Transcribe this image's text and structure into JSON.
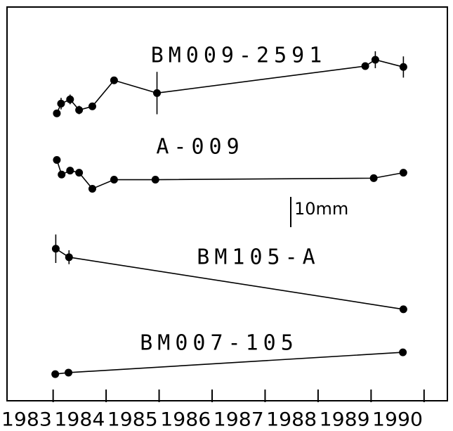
{
  "chart_data": {
    "type": "line",
    "xlim": [
      1983.13,
      1991.44
    ],
    "ylim": [
      0,
      130
    ],
    "xticks": [
      {
        "value": 1983.5,
        "label": "1983"
      },
      {
        "value": 1984.5,
        "label": "1984"
      },
      {
        "value": 1985.5,
        "label": "1985"
      },
      {
        "value": 1986.5,
        "label": "1986"
      },
      {
        "value": 1987.5,
        "label": "1987"
      },
      {
        "value": 1988.5,
        "label": "1988"
      },
      {
        "value": 1989.5,
        "label": "1989"
      },
      {
        "value": 1990.5,
        "label": "1990"
      }
    ],
    "xminorticks": [
      1984,
      1985,
      1986,
      1987,
      1988,
      1989,
      1990,
      1991
    ],
    "scale_bar": {
      "label": "10mm",
      "length": 10
    },
    "series": [
      {
        "name": "BM009-2591",
        "color": "#000000",
        "x": [
          1984.07,
          1984.15,
          1984.32,
          1984.49,
          1984.74,
          1985.15,
          1985.96,
          1989.89,
          1990.08,
          1990.61
        ],
        "values": [
          94.9,
          98.1,
          99.5,
          96.0,
          97.2,
          105.8,
          101.6,
          110.5,
          112.6,
          110.2
        ],
        "errors": [
          null,
          1.9,
          1.6,
          1.4,
          null,
          null,
          7.0,
          null,
          2.8,
          3.5
        ]
      },
      {
        "name": "A-009",
        "color": "#000000",
        "x": [
          1984.07,
          1984.16,
          1984.32,
          1984.49,
          1984.74,
          1985.15,
          1985.93,
          1990.05,
          1990.61
        ],
        "values": [
          79.5,
          74.7,
          76.0,
          75.3,
          70.0,
          73.0,
          73.0,
          73.5,
          75.3
        ]
      },
      {
        "name": "BM105-A",
        "color": "#000000",
        "x": [
          1984.05,
          1984.3,
          1990.61
        ],
        "values": [
          50.2,
          47.4,
          30.2
        ],
        "errors": [
          4.7,
          2.3,
          null
        ]
      },
      {
        "name": "BM007-105",
        "color": "#000000",
        "x": [
          1984.04,
          1984.29,
          1990.6
        ],
        "values": [
          8.8,
          9.3,
          16.0
        ]
      }
    ]
  }
}
